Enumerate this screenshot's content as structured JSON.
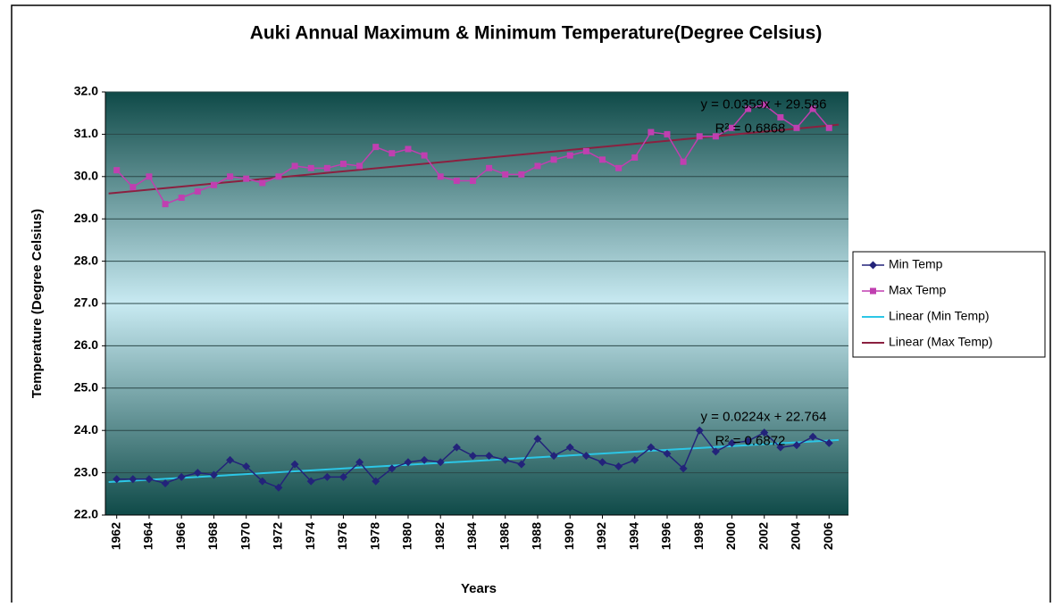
{
  "chart_data": {
    "type": "line",
    "title": "Auki Annual Maximum & Minimum Temperature(Degree Celsius)",
    "x_label": "Years",
    "y_label": "Temperature (Degree Celsius)",
    "x": [
      1962,
      1963,
      1964,
      1965,
      1966,
      1967,
      1968,
      1969,
      1970,
      1971,
      1972,
      1973,
      1974,
      1975,
      1976,
      1977,
      1978,
      1979,
      1980,
      1981,
      1982,
      1983,
      1984,
      1985,
      1986,
      1987,
      1988,
      1989,
      1990,
      1991,
      1992,
      1993,
      1994,
      1995,
      1996,
      1997,
      1998,
      1999,
      2000,
      2001,
      2002,
      2003,
      2004,
      2005,
      2006
    ],
    "xlim": [
      1961.3,
      2007.2
    ],
    "xticks": [
      1962,
      1964,
      1966,
      1968,
      1970,
      1972,
      1974,
      1976,
      1978,
      1980,
      1982,
      1984,
      1986,
      1988,
      1990,
      1992,
      1994,
      1996,
      1998,
      2000,
      2002,
      2004,
      2006
    ],
    "ylim": [
      22,
      32
    ],
    "yticks": [
      {
        "value": 22,
        "label": "22.0"
      },
      {
        "value": 23,
        "label": "23.0"
      },
      {
        "value": 24,
        "label": "24.0"
      },
      {
        "value": 25,
        "label": "25.0"
      },
      {
        "value": 26,
        "label": "26.0"
      },
      {
        "value": 27,
        "label": "27.0"
      },
      {
        "value": 28,
        "label": "28.0"
      },
      {
        "value": 29,
        "label": "29.0"
      },
      {
        "value": 30,
        "label": "30.0"
      },
      {
        "value": 31,
        "label": "31.0"
      },
      {
        "value": 32,
        "label": "32.0"
      }
    ],
    "grid": true,
    "legend": "right",
    "series": [
      {
        "name": "Min Temp",
        "color": "#23237a",
        "marker": "diamond",
        "trend_name": "Linear (Min Temp)",
        "trend_color": "#2cc6e6",
        "equation": "y = 0.0224x + 22.764",
        "r2": "R² = 0.6872",
        "values": [
          22.85,
          22.85,
          22.85,
          22.75,
          22.9,
          23.0,
          22.95,
          23.3,
          23.15,
          22.8,
          22.65,
          23.2,
          22.8,
          22.9,
          22.9,
          23.25,
          22.8,
          23.1,
          23.25,
          23.3,
          23.25,
          23.6,
          23.4,
          23.4,
          23.3,
          23.2,
          23.8,
          23.4,
          23.6,
          23.4,
          23.25,
          23.15,
          23.3,
          23.6,
          23.45,
          23.1,
          24.0,
          23.5,
          23.7,
          23.75,
          23.95,
          23.6,
          23.65,
          23.85,
          23.7
        ]
      },
      {
        "name": "Max Temp",
        "color": "#c03fb0",
        "marker": "square",
        "trend_name": "Linear (Max Temp)",
        "trend_color": "#8b2040",
        "equation": "y = 0.0359x + 29.586",
        "r2": "R² = 0.6868",
        "values": [
          30.15,
          29.75,
          30.0,
          29.35,
          29.5,
          29.65,
          29.8,
          30.0,
          29.95,
          29.85,
          30.0,
          30.25,
          30.2,
          30.2,
          30.3,
          30.25,
          30.7,
          30.55,
          30.65,
          30.5,
          30.0,
          29.9,
          29.9,
          30.2,
          30.05,
          30.05,
          30.25,
          30.4,
          30.5,
          30.6,
          30.4,
          30.2,
          30.45,
          31.05,
          31.0,
          30.35,
          30.95,
          30.95,
          31.15,
          31.6,
          31.7,
          31.4,
          31.15,
          31.6,
          31.15
        ]
      }
    ]
  }
}
